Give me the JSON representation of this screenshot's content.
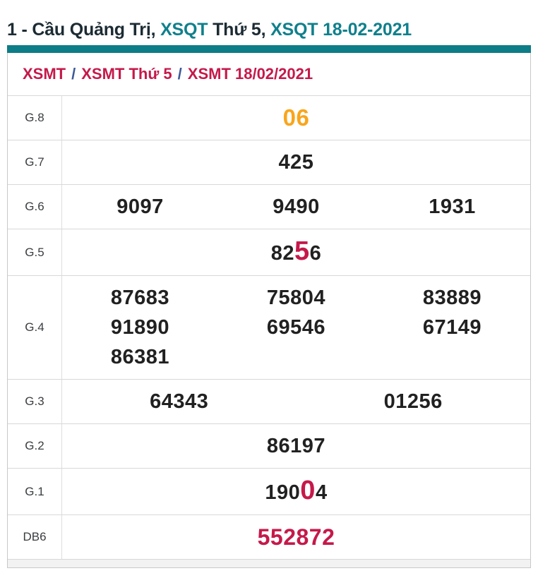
{
  "title": {
    "parts": [
      {
        "text": "1 - Cầu Quảng Trị, ",
        "style": "dark"
      },
      {
        "text": "XSQT",
        "style": "teal"
      },
      {
        "text": " Thứ 5, ",
        "style": "dark"
      },
      {
        "text": "XSQT 18-02-2021",
        "style": "teal"
      }
    ]
  },
  "breadcrumb": {
    "items": [
      "XSMT",
      "XSMT Thứ 5",
      "XSMT 18/02/2021"
    ],
    "separator": "/"
  },
  "results_table": {
    "rows": [
      {
        "label": "G.8",
        "cols": 1,
        "values": [
          {
            "text": "06",
            "style": "orange"
          }
        ]
      },
      {
        "label": "G.7",
        "cols": 1,
        "values": [
          "425"
        ]
      },
      {
        "label": "G.6",
        "cols": 3,
        "values": [
          "9097",
          "9490",
          "1931"
        ]
      },
      {
        "label": "G.5",
        "cols": 1,
        "values": [
          {
            "text": "8256",
            "highlight_index": 2
          }
        ]
      },
      {
        "label": "G.4",
        "cols": 3,
        "values": [
          "87683",
          "75804",
          "83889",
          "91890",
          "69546",
          "67149",
          "86381"
        ]
      },
      {
        "label": "G.3",
        "cols": 2,
        "values": [
          "64343",
          "01256"
        ]
      },
      {
        "label": "G.2",
        "cols": 1,
        "values": [
          "86197"
        ]
      },
      {
        "label": "G.1",
        "cols": 1,
        "values": [
          {
            "text": "19004",
            "highlight_index": 3
          }
        ]
      },
      {
        "label": "DB6",
        "cols": 1,
        "values": [
          {
            "text": "552872",
            "style": "red"
          }
        ]
      }
    ]
  },
  "colors": {
    "teal_bar": "#0d7d87",
    "teal_text": "#0f808c",
    "dark_text": "#1c2b33",
    "crimson": "#c5194a",
    "breadcrumb_separator_blue": "#3c5a99",
    "orange": "#f9a51b",
    "number_black": "#212121",
    "footer_gray": "#f2f2f2"
  }
}
